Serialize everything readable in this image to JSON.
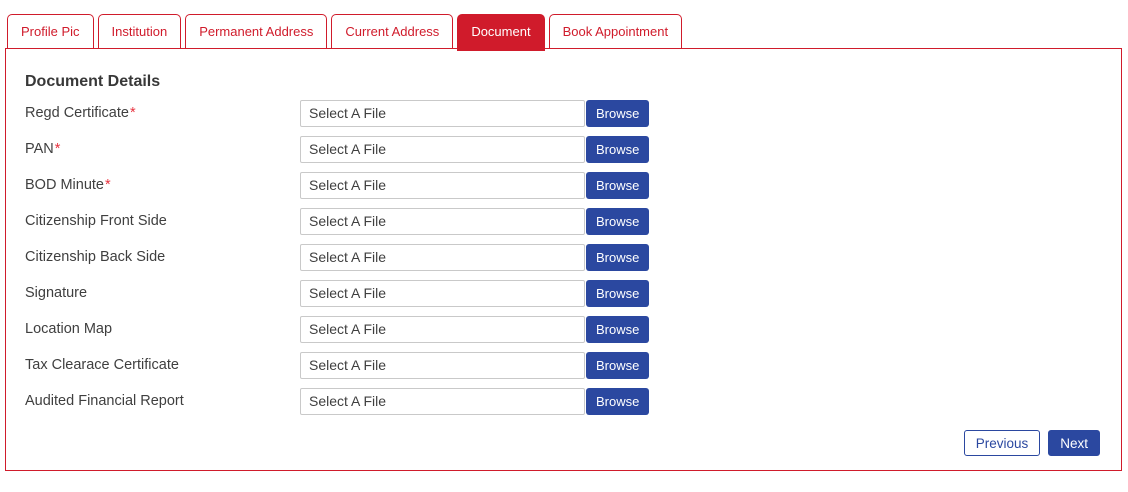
{
  "colors": {
    "accent_red": "#d01b2b",
    "accent_blue": "#2b48a0"
  },
  "tabs": [
    {
      "label": "Profile Pic",
      "active": false
    },
    {
      "label": "Institution",
      "active": false
    },
    {
      "label": "Permanent Address",
      "active": false
    },
    {
      "label": "Current Address",
      "active": false
    },
    {
      "label": "Document",
      "active": true
    },
    {
      "label": "Book Appointment",
      "active": false
    }
  ],
  "section_title": "Document Details",
  "file_input": {
    "value": "Select A File",
    "browse_label": "Browse"
  },
  "rows": [
    {
      "label": "Regd Certificate",
      "required": "*"
    },
    {
      "label": "PAN",
      "required": "*"
    },
    {
      "label": "BOD Minute",
      "required": "*"
    },
    {
      "label": "Citizenship Front Side",
      "required": ""
    },
    {
      "label": "Citizenship Back Side",
      "required": ""
    },
    {
      "label": "Signature",
      "required": ""
    },
    {
      "label": "Location Map",
      "required": ""
    },
    {
      "label": "Tax Clearace Certificate",
      "required": ""
    },
    {
      "label": "Audited Financial Report",
      "required": ""
    }
  ],
  "footer": {
    "previous_label": "Previous",
    "next_label": "Next"
  }
}
